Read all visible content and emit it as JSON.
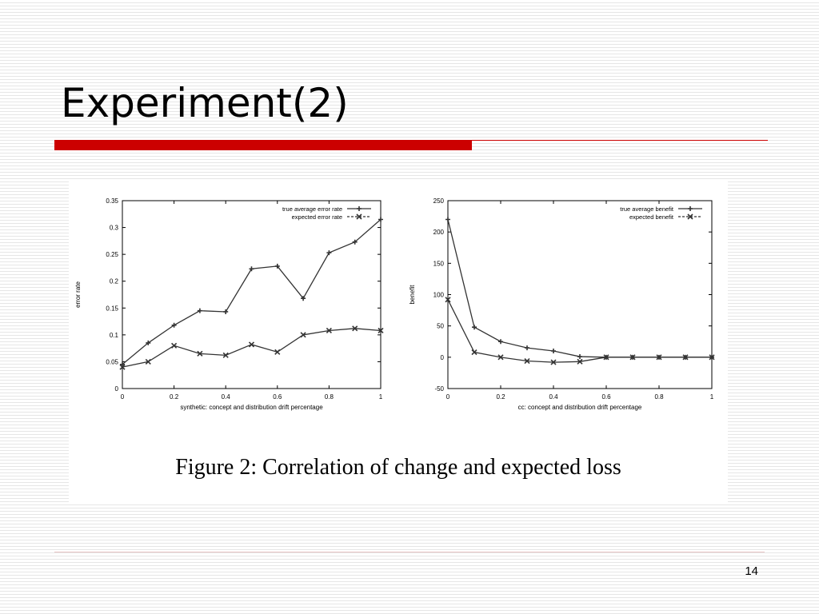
{
  "slide": {
    "title": "Experiment(2)",
    "caption": "Figure 2: Correlation of change and expected loss",
    "page_number": "14"
  },
  "colors": {
    "accent_red": "#cc0000",
    "series": "#333333"
  },
  "chart_data": [
    {
      "type": "line",
      "xlabel": "synthetic: concept and distribution drift percentage",
      "ylabel": "error rate",
      "xlim": [
        0,
        1
      ],
      "ylim": [
        0,
        0.35
      ],
      "xticks": [
        0,
        0.2,
        0.4,
        0.6,
        0.8,
        1
      ],
      "xtick_labels": [
        "0",
        "0.2",
        "0.4",
        "0.6",
        "0.8",
        "1"
      ],
      "yticks": [
        0,
        0.05,
        0.1,
        0.15,
        0.2,
        0.25,
        0.3,
        0.35
      ],
      "ytick_labels": [
        "0",
        "0.05",
        "0.1",
        "0.15",
        "0.2",
        "0.25",
        "0.3",
        "0.35"
      ],
      "legend_position": "top-right",
      "grid": false,
      "x": [
        0,
        0.1,
        0.2,
        0.3,
        0.4,
        0.5,
        0.6,
        0.7,
        0.8,
        0.9,
        1.0
      ],
      "series": [
        {
          "name": "true average error rate",
          "marker": "plus",
          "values": [
            0.045,
            0.085,
            0.118,
            0.145,
            0.143,
            0.223,
            0.228,
            0.168,
            0.253,
            0.273,
            0.315
          ]
        },
        {
          "name": "expected error rate",
          "marker": "x",
          "values": [
            0.04,
            0.05,
            0.08,
            0.065,
            0.062,
            0.082,
            0.068,
            0.1,
            0.108,
            0.112,
            0.108
          ]
        }
      ]
    },
    {
      "type": "line",
      "xlabel": "cc: concept and distribution drift percentage",
      "ylabel": "benefit",
      "xlim": [
        0,
        1
      ],
      "ylim": [
        -50,
        250
      ],
      "xticks": [
        0,
        0.2,
        0.4,
        0.6,
        0.8,
        1
      ],
      "xtick_labels": [
        "0",
        "0.2",
        "0.4",
        "0.6",
        "0.8",
        "1"
      ],
      "yticks": [
        -50,
        0,
        50,
        100,
        150,
        200,
        250
      ],
      "ytick_labels": [
        "-50",
        "0",
        "50",
        "100",
        "150",
        "200",
        "250"
      ],
      "legend_position": "top-right",
      "grid": false,
      "x": [
        0,
        0.1,
        0.2,
        0.3,
        0.4,
        0.5,
        0.6,
        0.7,
        0.8,
        0.9,
        1.0
      ],
      "series": [
        {
          "name": "true average benefit",
          "marker": "plus",
          "values": [
            220,
            48,
            25,
            15,
            10,
            1,
            0,
            0,
            0,
            0,
            0
          ]
        },
        {
          "name": "expected benefit",
          "marker": "x",
          "values": [
            92,
            8,
            0,
            -6,
            -8,
            -7,
            0,
            0,
            0,
            0,
            0
          ]
        }
      ]
    }
  ]
}
